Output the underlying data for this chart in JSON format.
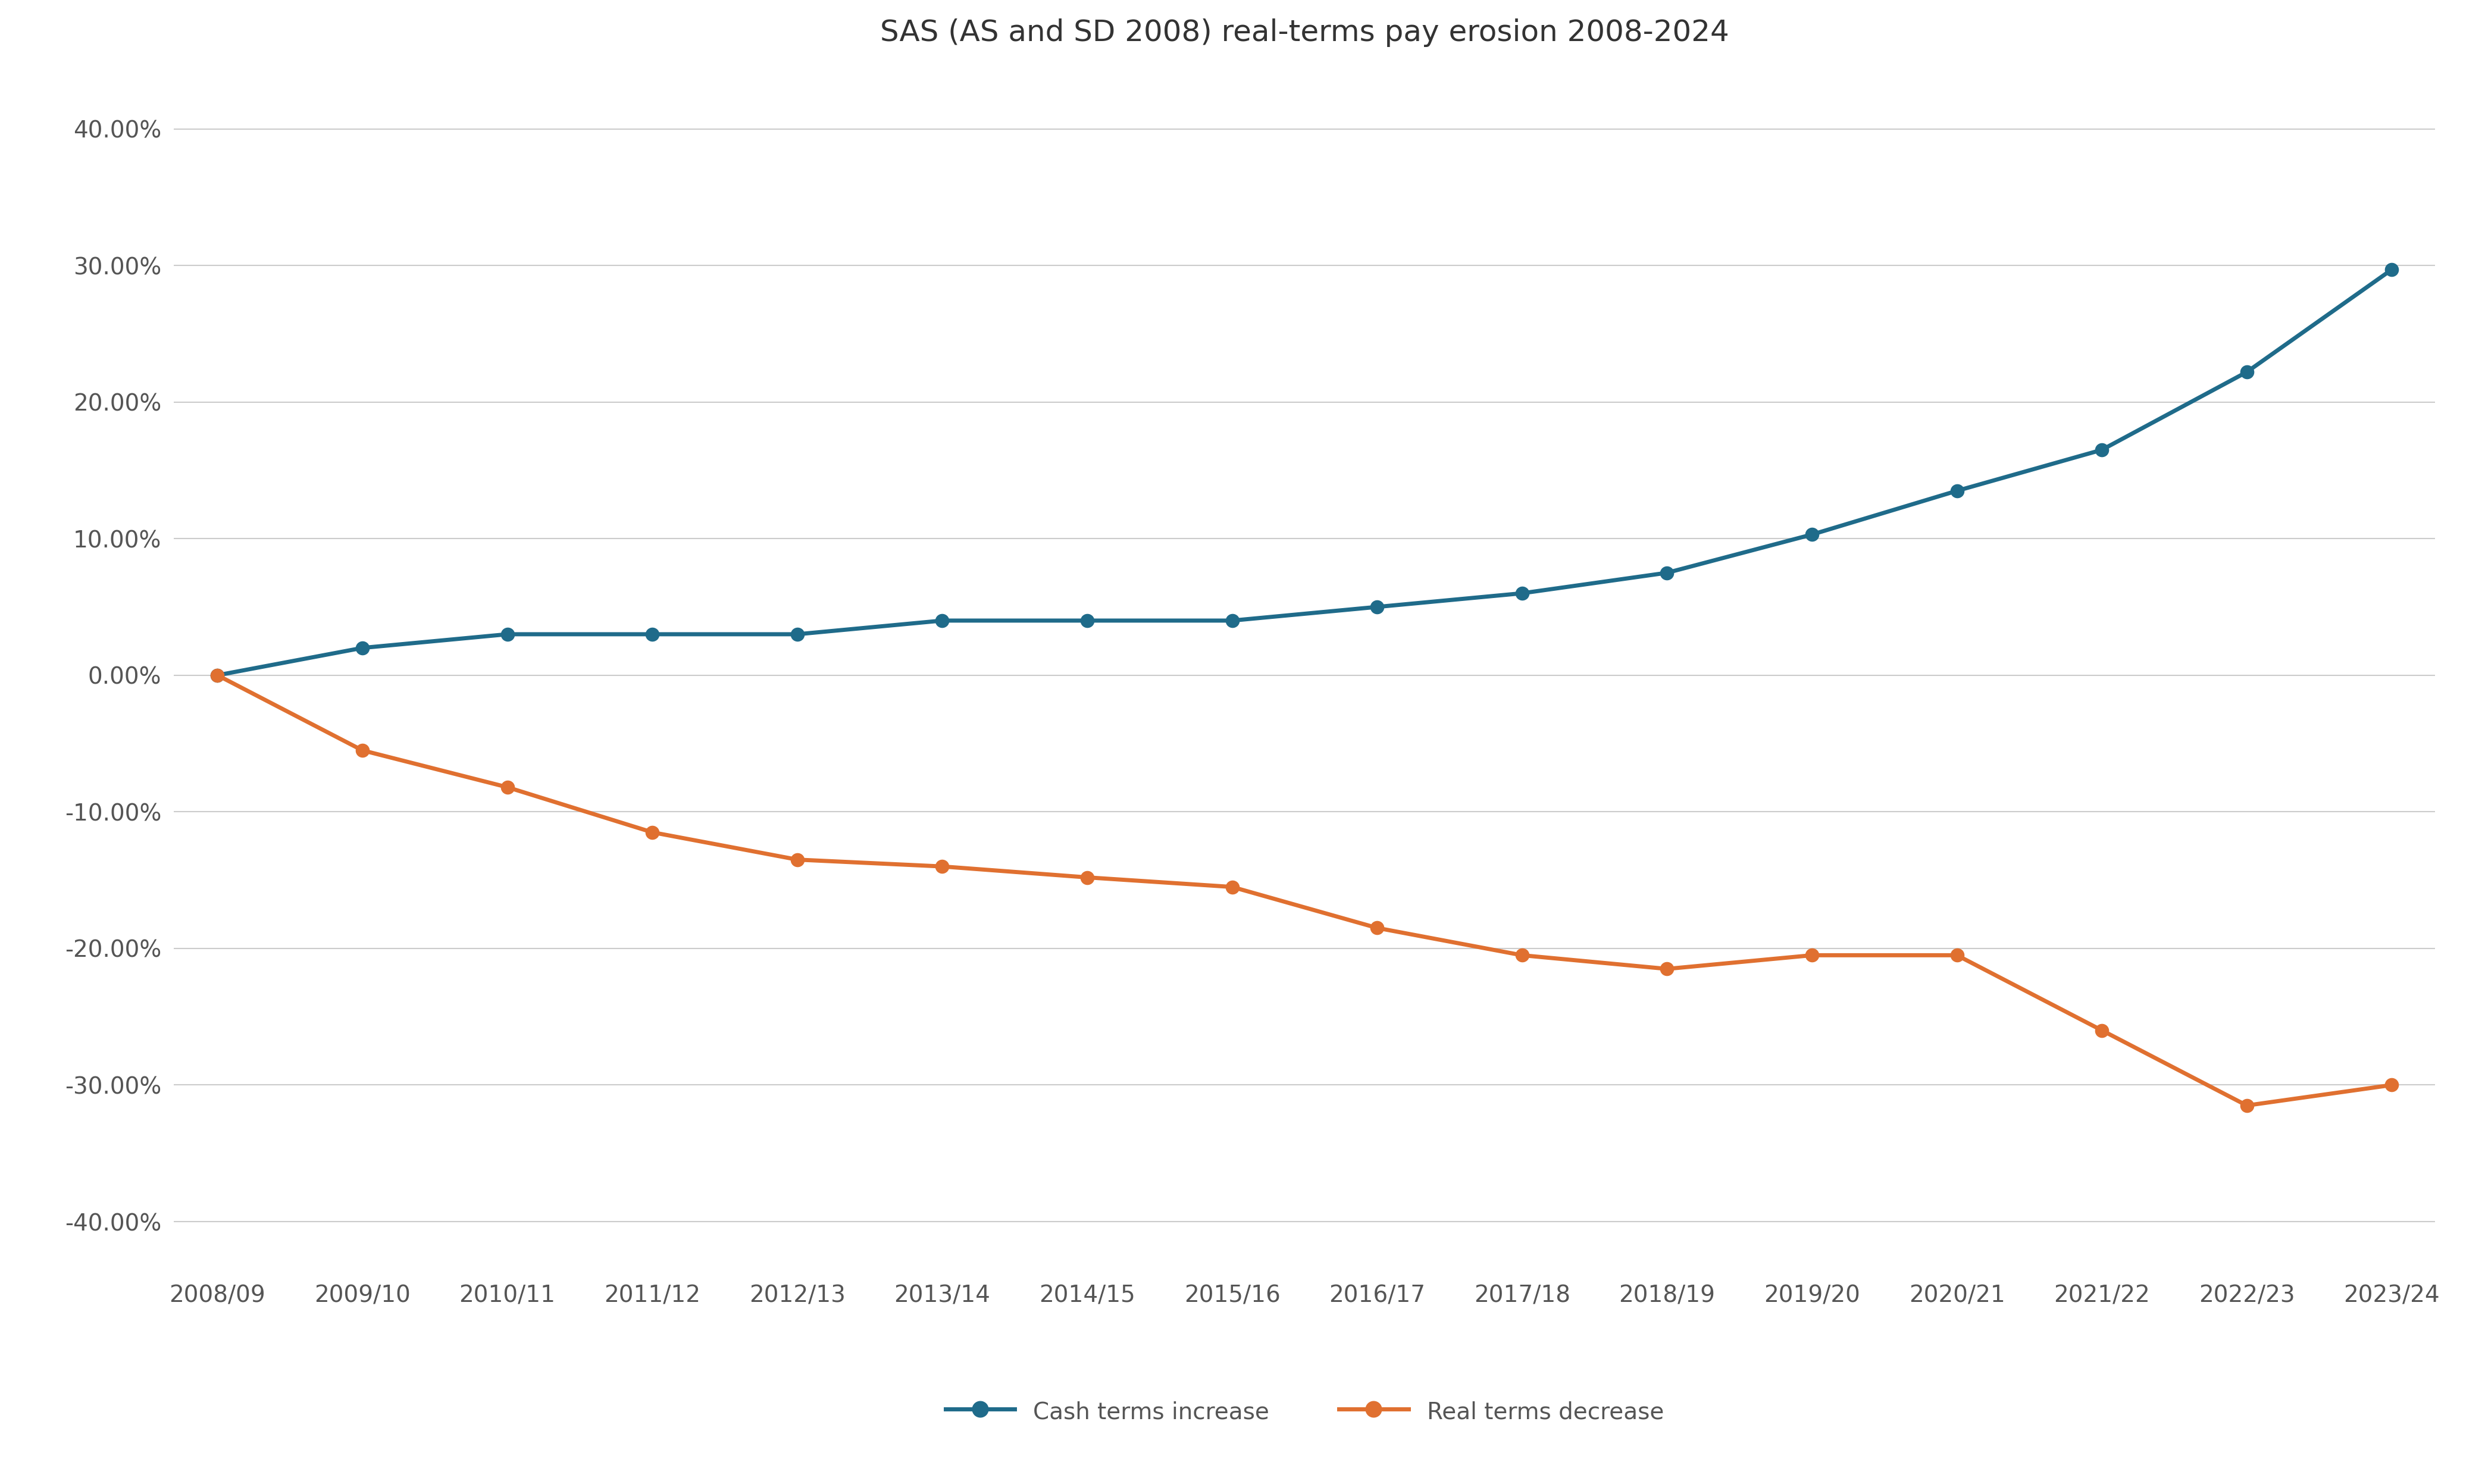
{
  "title": "SAS (AS and SD 2008) real-terms pay erosion 2008-2024",
  "x_labels": [
    "2008/09",
    "2009/10",
    "2010/11",
    "2011/12",
    "2012/13",
    "2013/14",
    "2014/15",
    "2015/16",
    "2016/17",
    "2017/18",
    "2018/19",
    "2019/20",
    "2020/21",
    "2021/22",
    "2022/23",
    "2023/24"
  ],
  "cash_terms": [
    0.0,
    0.02,
    0.03,
    0.03,
    0.03,
    0.04,
    0.04,
    0.04,
    0.05,
    0.06,
    0.075,
    0.103,
    0.135,
    0.165,
    0.222,
    0.297
  ],
  "real_terms": [
    0.0,
    -0.055,
    -0.082,
    -0.115,
    -0.135,
    -0.14,
    -0.148,
    -0.155,
    -0.185,
    -0.205,
    -0.215,
    -0.205,
    -0.205,
    -0.26,
    -0.315,
    -0.3
  ],
  "cash_color": "#1F6B8A",
  "real_color": "#E07030",
  "background_color": "#FFFFFF",
  "grid_color": "#CCCCCC",
  "ylim": [
    -0.44,
    0.44
  ],
  "yticks": [
    -0.4,
    -0.3,
    -0.2,
    -0.1,
    0.0,
    0.1,
    0.2,
    0.3,
    0.4
  ],
  "legend_label_cash": "Cash terms increase",
  "legend_label_real": "Real terms decrease",
  "title_fontsize": 36,
  "tick_fontsize": 28,
  "legend_fontsize": 28,
  "line_width": 5,
  "marker_size": 16
}
